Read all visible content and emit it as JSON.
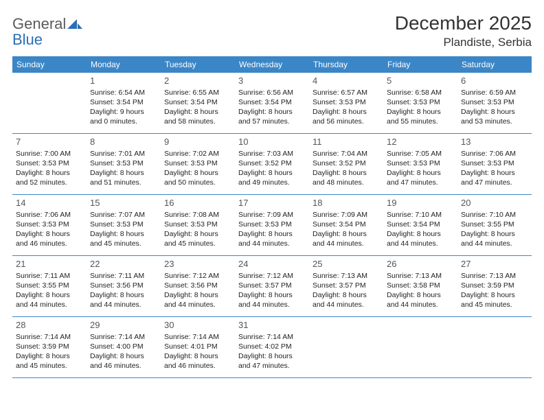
{
  "logo": {
    "word1": "General",
    "word2": "Blue"
  },
  "title": "December 2025",
  "location": "Plandiste, Serbia",
  "dayNames": [
    "Sunday",
    "Monday",
    "Tuesday",
    "Wednesday",
    "Thursday",
    "Friday",
    "Saturday"
  ],
  "colors": {
    "headerBg": "#3b86c7",
    "headerText": "#ffffff",
    "rowBorder": "#3b86c7",
    "logoGray": "#5a5a5a",
    "logoBlue": "#2a6fb5"
  },
  "weeks": [
    [
      {
        "num": "",
        "sunrise": "",
        "sunset": "",
        "daylight": ""
      },
      {
        "num": "1",
        "sunrise": "Sunrise: 6:54 AM",
        "sunset": "Sunset: 3:54 PM",
        "daylight": "Daylight: 9 hours and 0 minutes."
      },
      {
        "num": "2",
        "sunrise": "Sunrise: 6:55 AM",
        "sunset": "Sunset: 3:54 PM",
        "daylight": "Daylight: 8 hours and 58 minutes."
      },
      {
        "num": "3",
        "sunrise": "Sunrise: 6:56 AM",
        "sunset": "Sunset: 3:54 PM",
        "daylight": "Daylight: 8 hours and 57 minutes."
      },
      {
        "num": "4",
        "sunrise": "Sunrise: 6:57 AM",
        "sunset": "Sunset: 3:53 PM",
        "daylight": "Daylight: 8 hours and 56 minutes."
      },
      {
        "num": "5",
        "sunrise": "Sunrise: 6:58 AM",
        "sunset": "Sunset: 3:53 PM",
        "daylight": "Daylight: 8 hours and 55 minutes."
      },
      {
        "num": "6",
        "sunrise": "Sunrise: 6:59 AM",
        "sunset": "Sunset: 3:53 PM",
        "daylight": "Daylight: 8 hours and 53 minutes."
      }
    ],
    [
      {
        "num": "7",
        "sunrise": "Sunrise: 7:00 AM",
        "sunset": "Sunset: 3:53 PM",
        "daylight": "Daylight: 8 hours and 52 minutes."
      },
      {
        "num": "8",
        "sunrise": "Sunrise: 7:01 AM",
        "sunset": "Sunset: 3:53 PM",
        "daylight": "Daylight: 8 hours and 51 minutes."
      },
      {
        "num": "9",
        "sunrise": "Sunrise: 7:02 AM",
        "sunset": "Sunset: 3:53 PM",
        "daylight": "Daylight: 8 hours and 50 minutes."
      },
      {
        "num": "10",
        "sunrise": "Sunrise: 7:03 AM",
        "sunset": "Sunset: 3:52 PM",
        "daylight": "Daylight: 8 hours and 49 minutes."
      },
      {
        "num": "11",
        "sunrise": "Sunrise: 7:04 AM",
        "sunset": "Sunset: 3:52 PM",
        "daylight": "Daylight: 8 hours and 48 minutes."
      },
      {
        "num": "12",
        "sunrise": "Sunrise: 7:05 AM",
        "sunset": "Sunset: 3:53 PM",
        "daylight": "Daylight: 8 hours and 47 minutes."
      },
      {
        "num": "13",
        "sunrise": "Sunrise: 7:06 AM",
        "sunset": "Sunset: 3:53 PM",
        "daylight": "Daylight: 8 hours and 47 minutes."
      }
    ],
    [
      {
        "num": "14",
        "sunrise": "Sunrise: 7:06 AM",
        "sunset": "Sunset: 3:53 PM",
        "daylight": "Daylight: 8 hours and 46 minutes."
      },
      {
        "num": "15",
        "sunrise": "Sunrise: 7:07 AM",
        "sunset": "Sunset: 3:53 PM",
        "daylight": "Daylight: 8 hours and 45 minutes."
      },
      {
        "num": "16",
        "sunrise": "Sunrise: 7:08 AM",
        "sunset": "Sunset: 3:53 PM",
        "daylight": "Daylight: 8 hours and 45 minutes."
      },
      {
        "num": "17",
        "sunrise": "Sunrise: 7:09 AM",
        "sunset": "Sunset: 3:53 PM",
        "daylight": "Daylight: 8 hours and 44 minutes."
      },
      {
        "num": "18",
        "sunrise": "Sunrise: 7:09 AM",
        "sunset": "Sunset: 3:54 PM",
        "daylight": "Daylight: 8 hours and 44 minutes."
      },
      {
        "num": "19",
        "sunrise": "Sunrise: 7:10 AM",
        "sunset": "Sunset: 3:54 PM",
        "daylight": "Daylight: 8 hours and 44 minutes."
      },
      {
        "num": "20",
        "sunrise": "Sunrise: 7:10 AM",
        "sunset": "Sunset: 3:55 PM",
        "daylight": "Daylight: 8 hours and 44 minutes."
      }
    ],
    [
      {
        "num": "21",
        "sunrise": "Sunrise: 7:11 AM",
        "sunset": "Sunset: 3:55 PM",
        "daylight": "Daylight: 8 hours and 44 minutes."
      },
      {
        "num": "22",
        "sunrise": "Sunrise: 7:11 AM",
        "sunset": "Sunset: 3:56 PM",
        "daylight": "Daylight: 8 hours and 44 minutes."
      },
      {
        "num": "23",
        "sunrise": "Sunrise: 7:12 AM",
        "sunset": "Sunset: 3:56 PM",
        "daylight": "Daylight: 8 hours and 44 minutes."
      },
      {
        "num": "24",
        "sunrise": "Sunrise: 7:12 AM",
        "sunset": "Sunset: 3:57 PM",
        "daylight": "Daylight: 8 hours and 44 minutes."
      },
      {
        "num": "25",
        "sunrise": "Sunrise: 7:13 AM",
        "sunset": "Sunset: 3:57 PM",
        "daylight": "Daylight: 8 hours and 44 minutes."
      },
      {
        "num": "26",
        "sunrise": "Sunrise: 7:13 AM",
        "sunset": "Sunset: 3:58 PM",
        "daylight": "Daylight: 8 hours and 44 minutes."
      },
      {
        "num": "27",
        "sunrise": "Sunrise: 7:13 AM",
        "sunset": "Sunset: 3:59 PM",
        "daylight": "Daylight: 8 hours and 45 minutes."
      }
    ],
    [
      {
        "num": "28",
        "sunrise": "Sunrise: 7:14 AM",
        "sunset": "Sunset: 3:59 PM",
        "daylight": "Daylight: 8 hours and 45 minutes."
      },
      {
        "num": "29",
        "sunrise": "Sunrise: 7:14 AM",
        "sunset": "Sunset: 4:00 PM",
        "daylight": "Daylight: 8 hours and 46 minutes."
      },
      {
        "num": "30",
        "sunrise": "Sunrise: 7:14 AM",
        "sunset": "Sunset: 4:01 PM",
        "daylight": "Daylight: 8 hours and 46 minutes."
      },
      {
        "num": "31",
        "sunrise": "Sunrise: 7:14 AM",
        "sunset": "Sunset: 4:02 PM",
        "daylight": "Daylight: 8 hours and 47 minutes."
      },
      {
        "num": "",
        "sunrise": "",
        "sunset": "",
        "daylight": ""
      },
      {
        "num": "",
        "sunrise": "",
        "sunset": "",
        "daylight": ""
      },
      {
        "num": "",
        "sunrise": "",
        "sunset": "",
        "daylight": ""
      }
    ]
  ]
}
